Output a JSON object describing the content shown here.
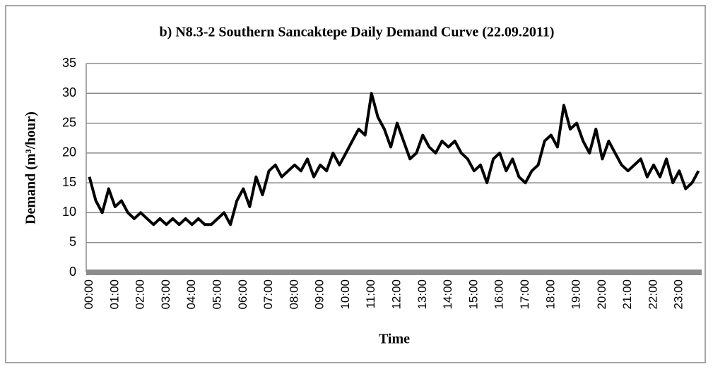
{
  "chart_data": {
    "type": "line",
    "title": "b) N8.3-2 Southern Sancaktepe  Daily Demand Curve (22.09.2011)",
    "x_label": "Time",
    "y_label": "Demand (m³/hour)",
    "categories": [
      "00:00",
      null,
      null,
      null,
      "01:00",
      null,
      null,
      null,
      "02:00",
      null,
      null,
      null,
      "03:00",
      null,
      null,
      null,
      "04:00",
      null,
      null,
      null,
      "05:00",
      null,
      null,
      null,
      "06:00",
      null,
      null,
      null,
      "07:00",
      null,
      null,
      null,
      "08:00",
      null,
      null,
      null,
      "09:00",
      null,
      null,
      null,
      "10:00",
      null,
      null,
      null,
      "11:00",
      null,
      null,
      null,
      "12:00",
      null,
      null,
      null,
      "13:00",
      null,
      null,
      null,
      "14:00",
      null,
      null,
      null,
      "15:00",
      null,
      null,
      null,
      "16:00",
      null,
      null,
      null,
      "17:00",
      null,
      null,
      null,
      "18:00",
      null,
      null,
      null,
      "19:00",
      null,
      null,
      null,
      "20:00",
      null,
      null,
      null,
      "21:00",
      null,
      null,
      null,
      "22:00",
      null,
      null,
      null,
      "23:00",
      null,
      null,
      null
    ],
    "values": [
      16,
      12,
      10,
      14,
      11,
      12,
      10,
      9,
      10,
      9,
      8,
      9,
      8,
      9,
      8,
      9,
      8,
      9,
      8,
      8,
      9,
      10,
      8,
      12,
      14,
      11,
      16,
      13,
      17,
      18,
      16,
      17,
      18,
      17,
      19,
      16,
      18,
      17,
      20,
      18,
      20,
      22,
      24,
      23,
      30,
      26,
      24,
      21,
      25,
      22,
      19,
      20,
      23,
      21,
      20,
      22,
      21,
      22,
      20,
      19,
      17,
      18,
      15,
      19,
      20,
      17,
      19,
      16,
      15,
      17,
      18,
      22,
      23,
      21,
      28,
      24,
      25,
      22,
      20,
      24,
      19,
      22,
      20,
      18,
      17,
      18,
      19,
      16,
      18,
      16,
      19,
      15,
      17,
      14,
      15,
      17
    ],
    "color": "#000000",
    "ylim": [
      0,
      35
    ],
    "yticks": [
      0,
      5,
      10,
      15,
      20,
      25,
      30,
      35
    ],
    "grid": true
  }
}
